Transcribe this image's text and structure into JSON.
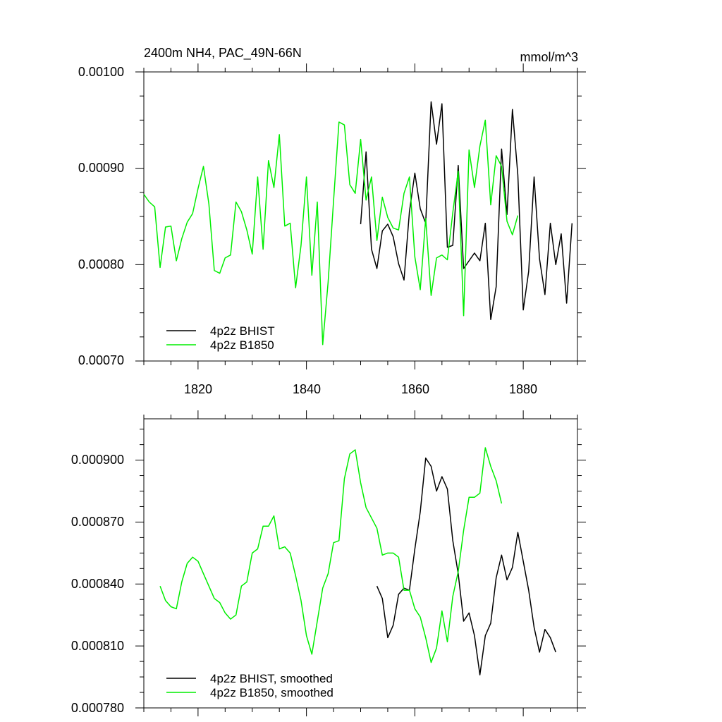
{
  "chart_data": [
    {
      "type": "line",
      "title": "2400m NH4, PAC_49N-66N",
      "units": "mmol/m^3",
      "xlim": [
        1810,
        1890
      ],
      "ylim": [
        0.0007,
        0.001
      ],
      "xticks": [
        1820,
        1840,
        1860,
        1880
      ],
      "xtick_labels": [
        "1820",
        "1840",
        "1860",
        "1880"
      ],
      "yticks": [
        0.0007,
        0.0008,
        0.0009,
        0.001
      ],
      "ytick_labels": [
        "0.00070",
        "0.00080",
        "0.00090",
        "0.00100"
      ],
      "legend_position": "bottom-left",
      "series": [
        {
          "name": "4p2z BHIST",
          "color": "#000000",
          "x": [
            1850,
            1851,
            1852,
            1853,
            1854,
            1855,
            1856,
            1857,
            1858,
            1859,
            1860,
            1861,
            1862,
            1863,
            1864,
            1865,
            1866,
            1867,
            1868,
            1869,
            1870,
            1871,
            1872,
            1873,
            1874,
            1875,
            1876,
            1877,
            1878,
            1879,
            1880,
            1881,
            1882,
            1883,
            1884,
            1885,
            1886,
            1887,
            1888,
            1889
          ],
          "y": [
            0.000842,
            0.000917,
            0.000816,
            0.000796,
            0.000835,
            0.000842,
            0.000829,
            0.000801,
            0.000784,
            0.000855,
            0.000895,
            0.000858,
            0.000843,
            0.000969,
            0.000925,
            0.000967,
            0.000818,
            0.00082,
            0.000903,
            0.000796,
            0.000804,
            0.000812,
            0.000804,
            0.000843,
            0.000743,
            0.000777,
            0.00092,
            0.000852,
            0.000961,
            0.000893,
            0.000753,
            0.000793,
            0.000891,
            0.000806,
            0.000769,
            0.000843,
            0.0008,
            0.000832,
            0.00076,
            0.000843
          ]
        },
        {
          "name": "4p2z B1850",
          "color": "#00ee00",
          "x": [
            1810,
            1811,
            1812,
            1813,
            1814,
            1815,
            1816,
            1817,
            1818,
            1819,
            1820,
            1821,
            1822,
            1823,
            1824,
            1825,
            1826,
            1827,
            1828,
            1829,
            1830,
            1831,
            1832,
            1833,
            1834,
            1835,
            1836,
            1837,
            1838,
            1839,
            1840,
            1841,
            1842,
            1843,
            1844,
            1845,
            1846,
            1847,
            1848,
            1849,
            1850,
            1851,
            1852,
            1853,
            1854,
            1855,
            1856,
            1857,
            1858,
            1859,
            1860,
            1861,
            1862,
            1863,
            1864,
            1865,
            1866,
            1867,
            1868,
            1869,
            1870,
            1871,
            1872,
            1873,
            1874,
            1875,
            1876,
            1877,
            1878,
            1879
          ],
          "y": [
            0.000873,
            0.000865,
            0.00086,
            0.000797,
            0.000839,
            0.00084,
            0.000804,
            0.000827,
            0.000844,
            0.000853,
            0.000879,
            0.000902,
            0.000863,
            0.000794,
            0.000791,
            0.000807,
            0.00081,
            0.000865,
            0.000855,
            0.000836,
            0.000811,
            0.000891,
            0.000816,
            0.000908,
            0.00088,
            0.000935,
            0.00084,
            0.000843,
            0.000776,
            0.00082,
            0.000891,
            0.000789,
            0.000865,
            0.000717,
            0.000782,
            0.000866,
            0.000948,
            0.000945,
            0.000883,
            0.000874,
            0.00093,
            0.000867,
            0.000891,
            0.000825,
            0.00087,
            0.000849,
            0.000838,
            0.000836,
            0.000874,
            0.000891,
            0.000808,
            0.000774,
            0.000848,
            0.000768,
            0.000807,
            0.00081,
            0.000805,
            0.000854,
            0.000897,
            0.000747,
            0.000919,
            0.00088,
            0.000923,
            0.00095,
            0.000862,
            0.000913,
            0.000902,
            0.000845,
            0.000831,
            0.000851
          ]
        }
      ]
    },
    {
      "type": "line",
      "xlim": [
        1810,
        1890
      ],
      "ylim": [
        0.00078,
        0.00092
      ],
      "xticks": [
        1820,
        1840,
        1860,
        1880
      ],
      "yticks": [
        0.00078,
        0.00081,
        0.00084,
        0.00087,
        0.0009
      ],
      "ytick_labels": [
        "0.000780",
        "0.000810",
        "0.000840",
        "0.000870",
        "0.000900"
      ],
      "legend_position": "bottom-left",
      "series": [
        {
          "name": "4p2z BHIST, smoothed",
          "color": "#000000",
          "x": [
            1853,
            1854,
            1855,
            1856,
            1857,
            1858,
            1859,
            1860,
            1861,
            1862,
            1863,
            1864,
            1865,
            1866,
            1867,
            1868,
            1869,
            1870,
            1871,
            1872,
            1873,
            1874,
            1875,
            1876,
            1877,
            1878,
            1879,
            1880,
            1881,
            1882,
            1883,
            1884,
            1885,
            1886
          ],
          "y": [
            0.000839,
            0.000833,
            0.000814,
            0.00082,
            0.000835,
            0.000838,
            0.000837,
            0.000857,
            0.000875,
            0.000901,
            0.000897,
            0.000885,
            0.000892,
            0.000886,
            0.000861,
            0.000845,
            0.000822,
            0.000826,
            0.000815,
            0.000796,
            0.000815,
            0.000821,
            0.000843,
            0.000854,
            0.000842,
            0.000848,
            0.000865,
            0.000851,
            0.000837,
            0.000819,
            0.000807,
            0.000818,
            0.000814,
            0.000807
          ]
        },
        {
          "name": "4p2z B1850, smoothed",
          "color": "#00ee00",
          "x": [
            1813,
            1814,
            1815,
            1816,
            1817,
            1818,
            1819,
            1820,
            1821,
            1822,
            1823,
            1824,
            1825,
            1826,
            1827,
            1828,
            1829,
            1830,
            1831,
            1832,
            1833,
            1834,
            1835,
            1836,
            1837,
            1838,
            1839,
            1840,
            1841,
            1842,
            1843,
            1844,
            1845,
            1846,
            1847,
            1848,
            1849,
            1850,
            1851,
            1852,
            1853,
            1854,
            1855,
            1856,
            1857,
            1858,
            1859,
            1860,
            1861,
            1862,
            1863,
            1864,
            1865,
            1866,
            1867,
            1868,
            1869,
            1870,
            1871,
            1872,
            1873,
            1874,
            1875,
            1876
          ],
          "y": [
            0.000839,
            0.000832,
            0.000829,
            0.000828,
            0.000841,
            0.00085,
            0.000853,
            0.000851,
            0.000845,
            0.000839,
            0.000833,
            0.000831,
            0.000826,
            0.000823,
            0.000825,
            0.000839,
            0.000841,
            0.000855,
            0.000857,
            0.000868,
            0.000868,
            0.000873,
            0.000857,
            0.000858,
            0.000855,
            0.000844,
            0.000832,
            0.000815,
            0.000806,
            0.000822,
            0.000838,
            0.000845,
            0.00086,
            0.000861,
            0.000891,
            0.000903,
            0.000905,
            0.000889,
            0.000877,
            0.000872,
            0.000867,
            0.000854,
            0.000855,
            0.000855,
            0.000853,
            0.000837,
            0.000837,
            0.000828,
            0.000824,
            0.000814,
            0.000802,
            0.000809,
            0.000827,
            0.000812,
            0.000834,
            0.000846,
            0.000866,
            0.000882,
            0.000882,
            0.000884,
            0.000906,
            0.000897,
            0.00089,
            0.000879
          ]
        }
      ]
    }
  ]
}
